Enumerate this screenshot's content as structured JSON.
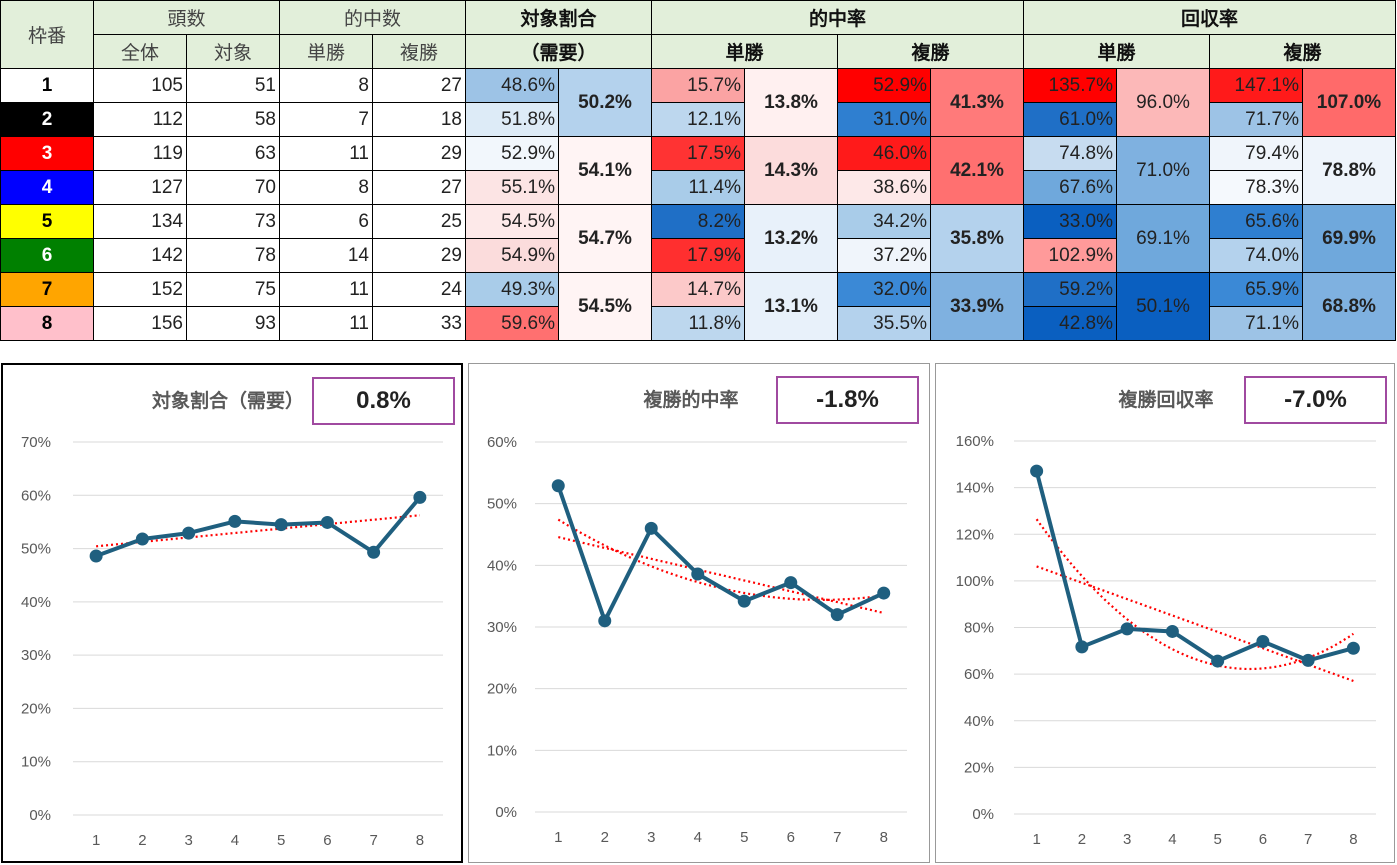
{
  "header": {
    "frame": "枠番",
    "heads": "頭数",
    "all": "全体",
    "target": "対象",
    "hits": "的中数",
    "win": "単勝",
    "place": "複勝",
    "ratio_title": "対象割合",
    "ratio_sub": "（需要）",
    "hit_rate": "的中率",
    "return_rate": "回収率"
  },
  "rows": [
    {
      "frame": "1",
      "all": "105",
      "target": "51",
      "win": "8",
      "place": "27",
      "ratio": "48.6%",
      "win_hit": "15.7%",
      "place_hit": "52.9%",
      "win_ret": "135.7%",
      "place_ret": "147.1%"
    },
    {
      "frame": "2",
      "all": "112",
      "target": "58",
      "win": "7",
      "place": "18",
      "ratio": "51.8%",
      "win_hit": "12.1%",
      "place_hit": "31.0%",
      "win_ret": "61.0%",
      "place_ret": "71.7%"
    },
    {
      "frame": "3",
      "all": "119",
      "target": "63",
      "win": "11",
      "place": "29",
      "ratio": "52.9%",
      "win_hit": "17.5%",
      "place_hit": "46.0%",
      "win_ret": "74.8%",
      "place_ret": "79.4%"
    },
    {
      "frame": "4",
      "all": "127",
      "target": "70",
      "win": "8",
      "place": "27",
      "ratio": "55.1%",
      "win_hit": "11.4%",
      "place_hit": "38.6%",
      "win_ret": "67.6%",
      "place_ret": "78.3%"
    },
    {
      "frame": "5",
      "all": "134",
      "target": "73",
      "win": "6",
      "place": "25",
      "ratio": "54.5%",
      "win_hit": "8.2%",
      "place_hit": "34.2%",
      "win_ret": "33.0%",
      "place_ret": "65.6%"
    },
    {
      "frame": "6",
      "all": "142",
      "target": "78",
      "win": "14",
      "place": "29",
      "ratio": "54.9%",
      "win_hit": "17.9%",
      "place_hit": "37.2%",
      "win_ret": "102.9%",
      "place_ret": "74.0%"
    },
    {
      "frame": "7",
      "all": "152",
      "target": "75",
      "win": "11",
      "place": "24",
      "ratio": "49.3%",
      "win_hit": "14.7%",
      "place_hit": "32.0%",
      "win_ret": "59.2%",
      "place_ret": "65.9%"
    },
    {
      "frame": "8",
      "all": "156",
      "target": "93",
      "win": "11",
      "place": "33",
      "ratio": "59.6%",
      "win_hit": "11.8%",
      "place_hit": "35.5%",
      "win_ret": "42.8%",
      "place_ret": "71.1%"
    }
  ],
  "merged": [
    {
      "ratio": "50.2%",
      "win_hit": "13.8%",
      "place_hit": "41.3%",
      "win_ret": "96.0%",
      "place_ret": "107.0%"
    },
    {
      "ratio": "54.1%",
      "win_hit": "14.3%",
      "place_hit": "42.1%",
      "win_ret": "71.0%",
      "place_ret": "78.8%"
    },
    {
      "ratio": "54.7%",
      "win_hit": "13.2%",
      "place_hit": "35.8%",
      "win_ret": "69.1%",
      "place_ret": "69.9%"
    },
    {
      "ratio": "54.5%",
      "win_hit": "13.1%",
      "place_hit": "33.9%",
      "win_ret": "50.1%",
      "place_ret": "68.8%"
    }
  ],
  "frame_colors": [
    "#ffffff",
    "#000000",
    "#ff0000",
    "#0000ff",
    "#ffff00",
    "#008000",
    "#ffa500",
    "#ffc0cb"
  ],
  "frame_text_colors": [
    "#000000",
    "#ffffff",
    "#ffffff",
    "#ffffff",
    "#000000",
    "#ffffff",
    "#000000",
    "#000000"
  ],
  "cell_colors": {
    "ratio": [
      "#9dc3e6",
      "#ddebf7",
      "#f2f7fc",
      "#fce4e4",
      "#fde9e9",
      "#fbdcdc",
      "#a9cce9",
      "#ff7070"
    ],
    "win_hit": [
      "#fba3a3",
      "#bdd7ee",
      "#ff3333",
      "#a9cce9",
      "#1f6fc6",
      "#ff2f2f",
      "#fcc9c9",
      "#bdd7ee"
    ],
    "place_hit": [
      "#ff0000",
      "#2f7fd0",
      "#ff1a1a",
      "#fde8e8",
      "#a9cce9",
      "#f0f5fb",
      "#3b89d6",
      "#b4d2ed"
    ],
    "win_ret": [
      "#ff0000",
      "#1f6fc6",
      "#c7dcf0",
      "#6fa8dc",
      "#0a5fc0",
      "#ff9a9a",
      "#1f6fc6",
      "#0a5fc0"
    ],
    "place_ret": [
      "#ff1a1a",
      "#9dc3e6",
      "#f0f5fb",
      "#f5f9fd",
      "#2f7fd0",
      "#b4d2ed",
      "#3b89d6",
      "#9dc3e6"
    ],
    "m_ratio": [
      "#b4d2ed",
      "#fff4f4",
      "#fff4f4",
      "#fff4f4"
    ],
    "m_win_hit": [
      "#fff0f0",
      "#fcdcdc",
      "#e8f1fa",
      "#e8f1fa"
    ],
    "m_place_hit": [
      "#ff7a7a",
      "#ff7070",
      "#b4d2ed",
      "#7fb1e0"
    ],
    "m_win_ret": [
      "#fcb8b8",
      "#7fb1e0",
      "#6fa8dc",
      "#0a5fc0"
    ],
    "m_place_ret": [
      "#ff6a6a",
      "#eef4fb",
      "#6fa8dc",
      "#7fb1e0"
    ]
  },
  "charts": [
    {
      "title": "対象割合（需要）",
      "badge": "0.8%",
      "ylim": [
        0,
        70
      ],
      "yticks": [
        "0%",
        "10%",
        "20%",
        "30%",
        "40%",
        "50%",
        "60%",
        "70%"
      ],
      "y": [
        48.6,
        51.8,
        52.9,
        55.1,
        54.5,
        54.9,
        49.3,
        59.6
      ],
      "x": [
        "1",
        "2",
        "3",
        "4",
        "5",
        "6",
        "7",
        "8"
      ]
    },
    {
      "title": "複勝的中率",
      "badge": "-1.8%",
      "ylim": [
        0,
        60
      ],
      "yticks": [
        "0%",
        "10%",
        "20%",
        "30%",
        "40%",
        "50%",
        "60%"
      ],
      "y": [
        52.9,
        31.0,
        46.0,
        38.6,
        34.2,
        37.2,
        32.0,
        35.5
      ],
      "x": [
        "1",
        "2",
        "3",
        "4",
        "5",
        "6",
        "7",
        "8"
      ]
    },
    {
      "title": "複勝回収率",
      "badge": "-7.0%",
      "ylim": [
        0,
        160
      ],
      "yticks": [
        "0%",
        "20%",
        "40%",
        "60%",
        "80%",
        "100%",
        "120%",
        "140%",
        "160%"
      ],
      "y": [
        147.1,
        71.7,
        79.4,
        78.3,
        65.6,
        74.0,
        65.9,
        71.1
      ],
      "x": [
        "1",
        "2",
        "3",
        "4",
        "5",
        "6",
        "7",
        "8"
      ]
    }
  ],
  "chart_data": [
    {
      "type": "line",
      "title": "対象割合（需要）",
      "categories": [
        "1",
        "2",
        "3",
        "4",
        "5",
        "6",
        "7",
        "8"
      ],
      "series": [
        {
          "values": [
            48.6,
            51.8,
            52.9,
            55.1,
            54.5,
            54.9,
            49.3,
            59.6
          ]
        }
      ],
      "ylim": [
        0,
        70
      ],
      "trendlines": "linear",
      "legend": "none",
      "grid": true
    },
    {
      "type": "line",
      "title": "複勝的中率",
      "categories": [
        "1",
        "2",
        "3",
        "4",
        "5",
        "6",
        "7",
        "8"
      ],
      "series": [
        {
          "values": [
            52.9,
            31.0,
            46.0,
            38.6,
            34.2,
            37.2,
            32.0,
            35.5
          ]
        }
      ],
      "ylim": [
        0,
        60
      ],
      "trendlines": "linear and polynomial",
      "legend": "none",
      "grid": true
    },
    {
      "type": "line",
      "title": "複勝回収率",
      "categories": [
        "1",
        "2",
        "3",
        "4",
        "5",
        "6",
        "7",
        "8"
      ],
      "series": [
        {
          "values": [
            147.1,
            71.7,
            79.4,
            78.3,
            65.6,
            74.0,
            65.9,
            71.1
          ]
        }
      ],
      "ylim": [
        0,
        160
      ],
      "trendlines": "linear and polynomial",
      "legend": "none",
      "grid": true
    }
  ],
  "colors": {
    "line": "#1f5f7f",
    "trend": "#ff0000",
    "grid": "#d9d9d9",
    "badge_border": "#a04aa0",
    "header_bg": "#e2efda"
  }
}
